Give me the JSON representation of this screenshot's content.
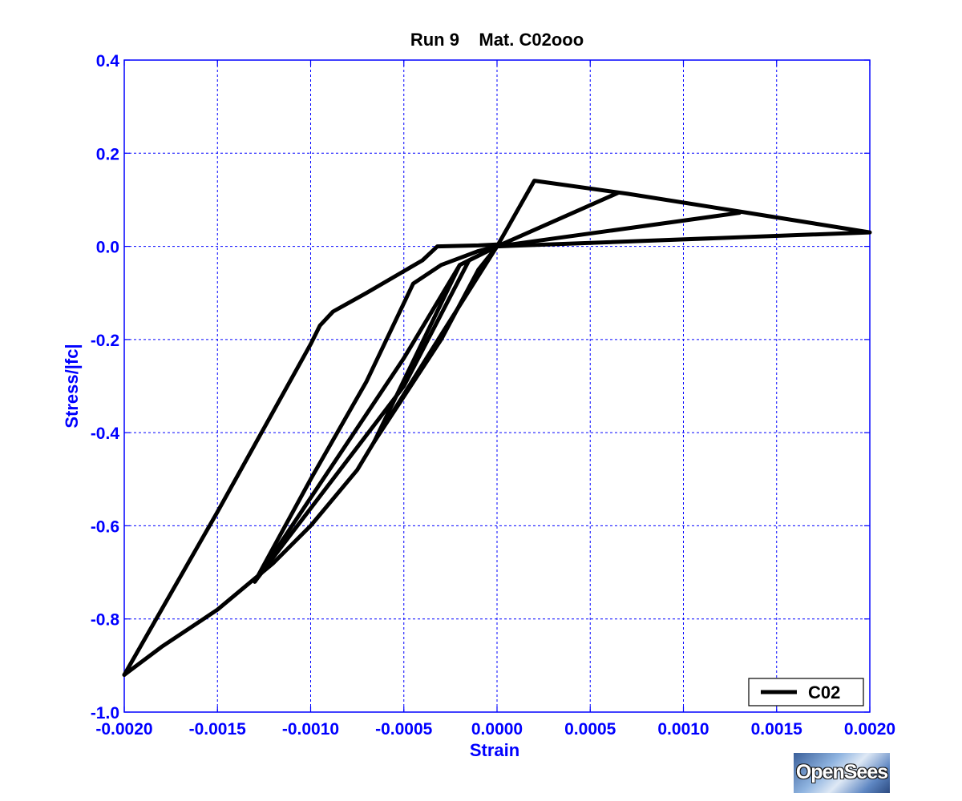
{
  "chart_data": {
    "type": "line",
    "title": "Run 9    Mat. C02ooo",
    "xlabel": "Strain",
    "ylabel": "Stress/|fc|",
    "xlim": [
      -0.002,
      0.002
    ],
    "ylim": [
      -1.0,
      0.4
    ],
    "xticks": [
      -0.002,
      -0.0015,
      -0.001,
      -0.0005,
      0.0,
      0.0005,
      0.001,
      0.0015,
      0.002
    ],
    "xtick_labels": [
      "-0.0020",
      "-0.0015",
      "-0.0010",
      "-0.0005",
      "0.0000",
      "0.0005",
      "0.0010",
      "0.0015",
      "0.0020"
    ],
    "yticks": [
      0.4,
      0.2,
      0.0,
      -0.2,
      -0.4,
      -0.6,
      -0.8,
      -1.0
    ],
    "ytick_labels": [
      "0.4",
      "0.2",
      "0.0",
      "-0.2",
      "-0.4",
      "-0.6",
      "-0.8",
      "-1.0"
    ],
    "grid": true,
    "legend_position": "bottom-right",
    "series": [
      {
        "name": "C02",
        "color": "#000000",
        "paths": [
          [
            [
              0.0,
              0.0
            ],
            [
              0.0002,
              0.141
            ],
            [
              0.0007,
              0.113
            ],
            [
              0.0013,
              0.075
            ],
            [
              0.002,
              0.03
            ],
            [
              0.0,
              0.0
            ]
          ],
          [
            [
              0.0,
              0.0
            ],
            [
              0.00065,
              0.115
            ],
            [
              0.0,
              0.0
            ]
          ],
          [
            [
              0.0,
              0.0
            ],
            [
              0.0013,
              0.072
            ],
            [
              0.0,
              0.0
            ]
          ],
          [
            [
              0.0,
              0.0
            ],
            [
              -0.0002,
              -0.04
            ],
            [
              -0.00066,
              -0.42
            ],
            [
              -0.00075,
              -0.48
            ],
            [
              -0.001,
              -0.6
            ],
            [
              -0.0012,
              -0.68
            ],
            [
              -0.0015,
              -0.78
            ],
            [
              -0.0018,
              -0.86
            ],
            [
              -0.002,
              -0.92
            ]
          ],
          [
            [
              -0.002,
              -0.92
            ],
            [
              -0.0015,
              -0.57
            ],
            [
              -0.001,
              -0.21
            ],
            [
              -0.00095,
              -0.17
            ],
            [
              -0.00088,
              -0.14
            ],
            [
              -0.0007,
              -0.1
            ],
            [
              -0.0004,
              -0.03
            ],
            [
              -0.00032,
              0.0
            ],
            [
              -0.0001,
              0.002
            ],
            [
              0.0,
              0.004
            ]
          ],
          [
            [
              -0.0013,
              -0.72
            ],
            [
              -0.001,
              -0.5
            ],
            [
              -0.0007,
              -0.29
            ],
            [
              -0.00045,
              -0.08
            ],
            [
              -0.0003,
              -0.04
            ],
            [
              -0.0001,
              -0.01
            ],
            [
              0.0,
              0.0
            ]
          ],
          [
            [
              -0.0013,
              -0.72
            ],
            [
              -0.001,
              -0.54
            ],
            [
              -0.0005,
              -0.24
            ],
            [
              -0.0002,
              -0.04
            ],
            [
              0.0,
              0.0
            ]
          ],
          [
            [
              -0.0013,
              -0.72
            ],
            [
              -0.0009,
              -0.51
            ],
            [
              -0.0005,
              -0.3
            ],
            [
              -0.00015,
              -0.03
            ],
            [
              0.0,
              0.0
            ]
          ],
          [
            [
              -0.00066,
              -0.42
            ],
            [
              -0.0003,
              -0.2
            ],
            [
              -0.0001,
              -0.05
            ],
            [
              0.0,
              0.0
            ]
          ],
          [
            [
              -0.00066,
              -0.42
            ],
            [
              -0.0003,
              -0.19
            ],
            [
              0.0,
              0.0
            ]
          ]
        ]
      }
    ]
  },
  "logo_text": "OpenSees"
}
